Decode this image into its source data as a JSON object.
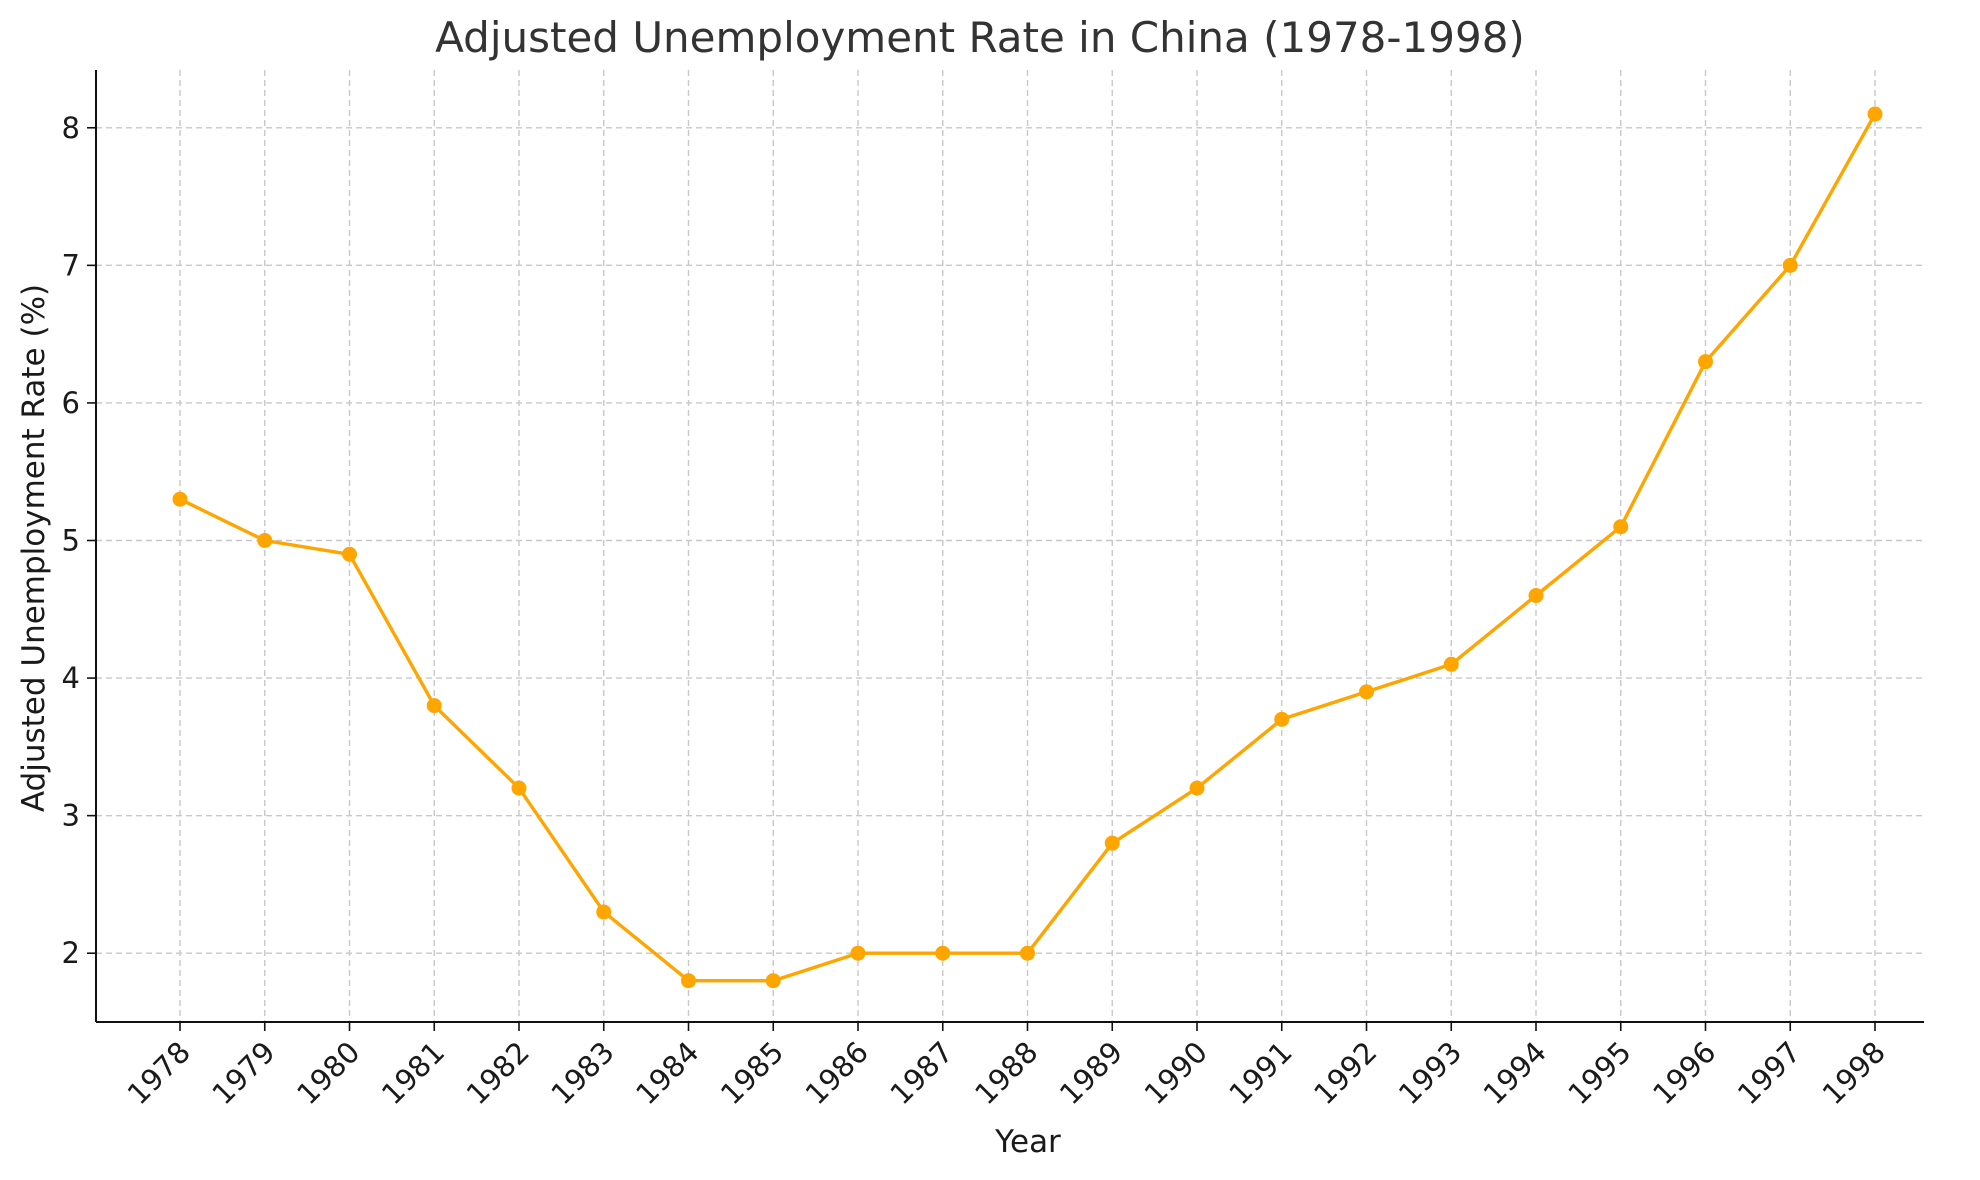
{
  "chart_data": {
    "type": "line",
    "title": "Adjusted Unemployment Rate in China (1978-1998)",
    "xlabel": "Year",
    "ylabel": "Adjusted Unemployment Rate (%)",
    "x": [
      "1978",
      "1979",
      "1980",
      "1981",
      "1982",
      "1983",
      "1984",
      "1985",
      "1986",
      "1987",
      "1988",
      "1989",
      "1990",
      "1991",
      "1992",
      "1993",
      "1994",
      "1995",
      "1996",
      "1997",
      "1998"
    ],
    "series": [
      {
        "values": [
          5.3,
          5.0,
          4.9,
          3.8,
          3.2,
          2.3,
          1.8,
          1.8,
          2.0,
          2.0,
          2.0,
          2.8,
          3.2,
          3.7,
          3.9,
          4.1,
          4.6,
          5.1,
          6.3,
          7.0,
          8.1
        ],
        "color": "#FFA500"
      }
    ],
    "ylim": [
      1.5,
      8.42
    ],
    "yticks": [
      2,
      3,
      4,
      5,
      6,
      7,
      8
    ],
    "grid": true,
    "marker": "circle"
  }
}
